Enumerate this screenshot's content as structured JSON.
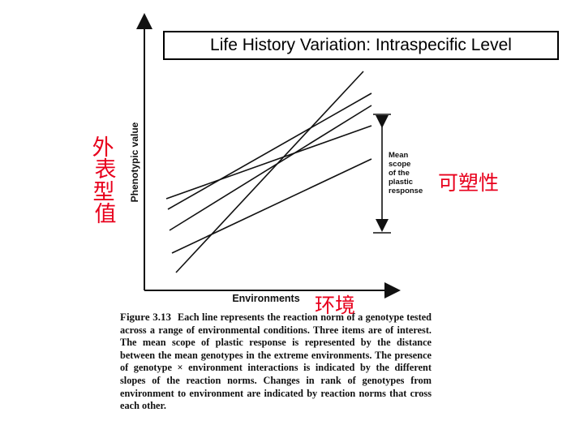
{
  "slide": {
    "title": "Life History Variation: Intraspecific Level"
  },
  "figure": {
    "y_axis_label": "Phenotypic value",
    "x_axis_label": "Environments",
    "bracket_label_lines": [
      "Mean",
      "scope",
      "of the",
      "plastic",
      "response"
    ],
    "handwritten": {
      "y_label_chars": [
        "外",
        "表",
        "型",
        "值"
      ],
      "x_label": "环境",
      "bracket_label": "可塑性"
    },
    "line_color": "#111111",
    "annotation_color": "#e8001c"
  },
  "caption": {
    "label": "Figure 3.13",
    "text": "Each line represents the reaction norm of a genotype tested across a range of environmental conditions. Three items are of interest. The mean scope of plastic response is represented by the distance between the mean genotypes in the extreme environments. The presence of genotype × environment interactions is indicated by the different slopes of the reaction norms. Changes in rank of genotypes from environment to environment are indicated by reaction norms that cross each other."
  }
}
